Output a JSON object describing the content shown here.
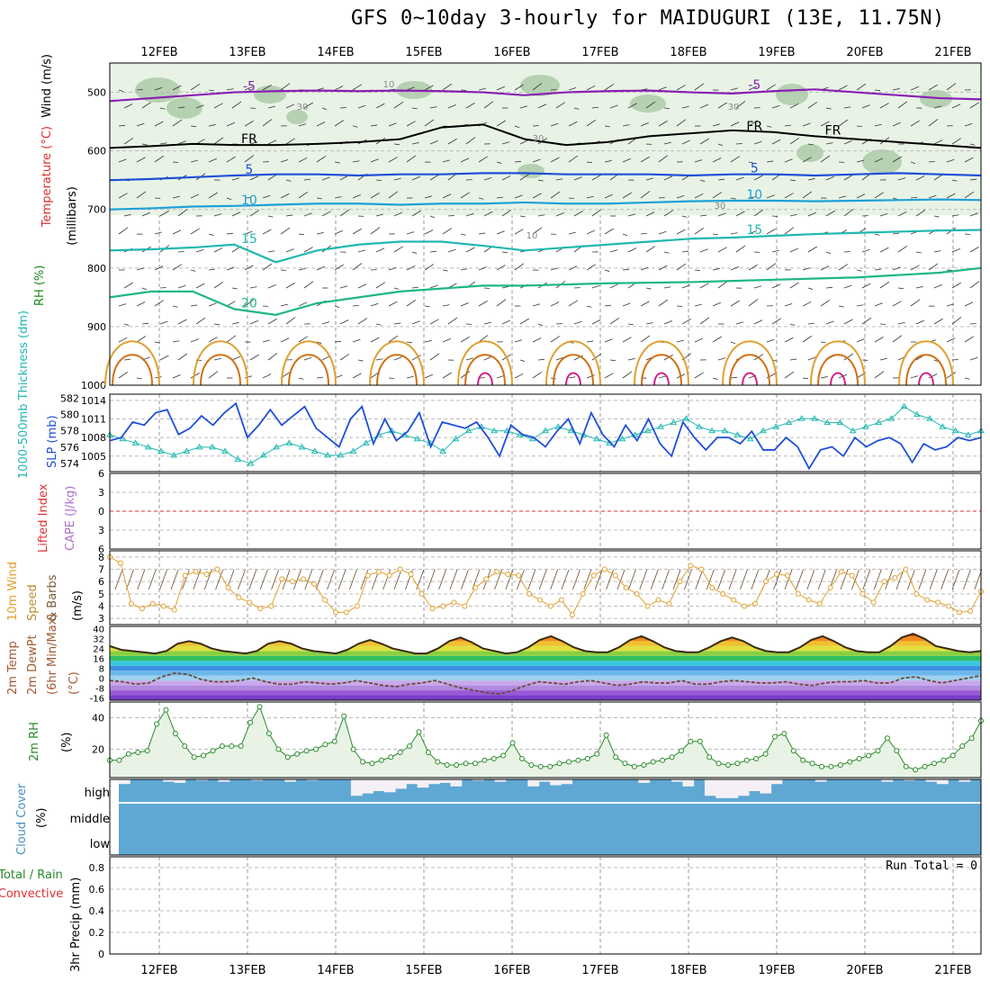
{
  "title": "GFS 0~10day 3-hourly for MAIDUGURI (13E, 11.75N)",
  "dates": [
    "12FEB",
    "13FEB",
    "14FEB",
    "15FEB",
    "16FEB",
    "17FEB",
    "18FEB",
    "19FEB",
    "20FEB",
    "21FEB"
  ],
  "colors": {
    "purple": "#8a1fb4",
    "blue": "#1f4fd8",
    "lightblue": "#1ea0d8",
    "teal": "#20b8b0",
    "green": "#1fb880",
    "orange": "#e0a030",
    "darkorange": "#d07010",
    "magenta": "#d0208a",
    "rh_fill": "#e8f3e6",
    "rh_dark": "#a8c8a4",
    "cloud": "#5fa8d4",
    "ref_red": "#e03030"
  },
  "chart_data": [
    {
      "type": "heatmap",
      "name": "upper_air_cross_section",
      "ylabel_parts": [
        "Wind (m/s)",
        "Temperature (°C)",
        "RH (%)"
      ],
      "yunit_label": "(millibars)",
      "yticks": [
        500,
        600,
        700,
        800,
        900,
        1000
      ],
      "ylim": [
        450,
        1000
      ],
      "temperature_contours": [
        {
          "label": "-5",
          "color": "purple",
          "pressure": [
            515,
            510,
            505,
            500,
            498,
            497,
            498,
            497,
            498,
            500,
            505,
            500,
            498,
            497,
            500,
            502,
            498,
            495,
            500,
            505,
            510,
            512
          ],
          "annotations": [
            "-5",
            "-5"
          ]
        },
        {
          "label": "FR",
          "color": "black",
          "pressure": [
            595,
            592,
            588,
            590,
            590,
            588,
            585,
            580,
            560,
            555,
            580,
            590,
            585,
            575,
            570,
            565,
            568,
            575,
            580,
            585,
            590,
            595
          ],
          "annotations": [
            "FR",
            "FR",
            "FR"
          ]
        },
        {
          "label": "5",
          "color": "blue",
          "pressure": [
            650,
            648,
            645,
            642,
            640,
            640,
            642,
            640,
            640,
            638,
            638,
            640,
            640,
            640,
            642,
            640,
            640,
            642,
            640,
            638,
            640,
            642
          ],
          "annotations": [
            "5",
            "5"
          ]
        },
        {
          "label": "10",
          "color": "lightblue",
          "pressure": [
            700,
            698,
            695,
            694,
            692,
            690,
            690,
            692,
            690,
            690,
            688,
            690,
            690,
            688,
            686,
            685,
            685,
            686,
            685,
            684,
            683,
            684
          ],
          "annotations": [
            "10",
            "10"
          ]
        },
        {
          "label": "15",
          "color": "teal",
          "pressure": [
            770,
            768,
            765,
            760,
            790,
            770,
            760,
            755,
            755,
            762,
            770,
            765,
            760,
            755,
            750,
            748,
            745,
            742,
            740,
            738,
            736,
            735
          ],
          "annotations": [
            "15",
            "15"
          ]
        },
        {
          "label": "20",
          "color": "green",
          "pressure": [
            850,
            840,
            840,
            870,
            880,
            860,
            850,
            840,
            835,
            830,
            830,
            828,
            826,
            825,
            824,
            822,
            820,
            818,
            816,
            812,
            808,
            800
          ],
          "annotations": [
            "20"
          ]
        }
      ],
      "rh_contour_labels": [
        "10",
        "30",
        "30",
        "30",
        "10",
        "30"
      ]
    },
    {
      "type": "line",
      "name": "thickness_slp",
      "series": [
        {
          "name": "SLP (mb)",
          "axis": "right",
          "color": "blue",
          "values": [
            1007.5,
            1008,
            1010.5,
            1010,
            1012,
            1012.5,
            1008.5,
            1009.5,
            1011.5,
            1010,
            1012,
            1013.5,
            1008,
            1010,
            1012.5,
            1010,
            1011.5,
            1013,
            1009.5,
            1008,
            1006.5,
            1011,
            1013,
            1007,
            1011,
            1007.5,
            1009,
            1012,
            1006.5,
            1010.5,
            1010,
            1009.5,
            1010.5,
            1008,
            1005,
            1010,
            1008.5,
            1008,
            1006.5,
            1009,
            1011,
            1007,
            1012,
            1008.5,
            1006.5,
            1010,
            1007.5,
            1011,
            1007,
            1005,
            1010.5,
            1008,
            1006,
            1008,
            1008,
            1007,
            1009,
            1006,
            1006,
            1008,
            1006.5,
            1003,
            1006,
            1006.5,
            1005,
            1008,
            1006.5,
            1007.5,
            1008,
            1007,
            1004,
            1007,
            1006,
            1006.5,
            1008,
            1007.5,
            1008
          ]
        },
        {
          "name": "1000-500mb thickness (dm)",
          "axis": "left",
          "color": "teal",
          "values": [
            577.5,
            577,
            576.5,
            576,
            575.5,
            575,
            575.5,
            576,
            576,
            575.5,
            574.5,
            574,
            575,
            576,
            576.5,
            576,
            575.5,
            575,
            575,
            575.5,
            576.5,
            577.5,
            578,
            577.5,
            577,
            576.5,
            575.5,
            577,
            578,
            578.5,
            578,
            578,
            577.5,
            577,
            578,
            578.5,
            578,
            577.5,
            577,
            576.5,
            577,
            577.5,
            578,
            578.5,
            579,
            579.5,
            578.5,
            578,
            578,
            577.5,
            577,
            578,
            578.5,
            579,
            579.5,
            579.5,
            579,
            579,
            578,
            578.5,
            579,
            579.5,
            581,
            580,
            579.5,
            578.5,
            578,
            577.5,
            578
          ]
        }
      ],
      "yleft_ticks": [
        574,
        576,
        578,
        580,
        582
      ],
      "yright_ticks": [
        1005,
        1008,
        1011,
        1014
      ],
      "ylabel_left": "1000-500mb Thickness (dm)",
      "ylabel_right": "SLP (mb)"
    },
    {
      "type": "line",
      "name": "lifted_index_cape",
      "yticks": [
        -6,
        -3,
        0,
        3,
        6
      ],
      "ylabel_left": "Lifted Index",
      "ylabel_right": "CAPE (J/kg)",
      "series": []
    },
    {
      "type": "line",
      "name": "wind10m",
      "ylabel": [
        "10m Wind",
        "Speed",
        "& Barbs",
        "(m/s)"
      ],
      "yticks": [
        3,
        4,
        5,
        6,
        7,
        8
      ],
      "series": [
        {
          "name": "10m wind speed",
          "color": "orange",
          "values": [
            8,
            7.5,
            4.2,
            3.8,
            4.2,
            4,
            3.7,
            6.5,
            6.8,
            6.6,
            7,
            5.5,
            4.7,
            4.3,
            3.8,
            4,
            6.2,
            6,
            6.2,
            5.8,
            4.5,
            3.5,
            3.5,
            4,
            6.5,
            6.8,
            6.5,
            7,
            6.6,
            5,
            3.8,
            4,
            4.3,
            4,
            5.5,
            6.2,
            6.8,
            6.6,
            6.5,
            5,
            4.5,
            4,
            4.5,
            3.3,
            5,
            6.5,
            7,
            6.5,
            5.5,
            5,
            4,
            4.5,
            4.2,
            6,
            7.3,
            7,
            5.5,
            5,
            4.5,
            4,
            4.2,
            6,
            6.6,
            6.5,
            5,
            4.5,
            4.2,
            5.5,
            6.8,
            6.5,
            5,
            4.3,
            6,
            6.3,
            7,
            5,
            4.5,
            4.3,
            4,
            3.5,
            3.6,
            5.2
          ]
        }
      ]
    },
    {
      "type": "area",
      "name": "temp_dewpoint",
      "ylabel": [
        "2m Temp",
        "2m DewPt",
        "(6hr Min/Max)",
        "(°C)"
      ],
      "yticks": [
        -16,
        -8,
        0,
        8,
        16,
        24,
        32,
        40
      ],
      "series": [
        {
          "name": "2m Temp",
          "values": [
            26,
            23,
            22,
            21,
            20,
            22,
            28,
            30,
            28,
            24,
            22,
            21,
            20,
            22,
            28,
            30,
            28,
            24,
            22,
            21,
            20,
            23,
            28,
            31,
            28,
            24,
            22,
            20,
            20,
            24,
            30,
            33,
            29,
            24,
            22,
            20,
            21,
            25,
            31,
            34,
            30,
            25,
            22,
            21,
            21,
            25,
            31,
            34,
            30,
            25,
            22,
            21,
            21,
            25,
            30,
            33,
            30,
            25,
            22,
            21,
            21,
            25,
            31,
            34,
            30,
            25,
            22,
            21,
            21,
            26,
            33,
            36,
            32,
            26,
            24,
            22,
            21,
            22
          ]
        },
        {
          "name": "2m DewPt",
          "values": [
            -2,
            -3,
            -5,
            -4,
            1,
            4,
            3,
            -1,
            -3,
            -3,
            -2,
            0,
            -3,
            -5,
            -5,
            -3,
            -4,
            -5,
            -4,
            -2,
            -4,
            -6,
            -7,
            -5,
            -4,
            -2,
            -5,
            -8,
            -10,
            -12,
            -13,
            -10,
            -6,
            -3,
            -4,
            -5,
            -3,
            -2,
            -4,
            -6,
            -5,
            -3,
            -4,
            -4,
            -2,
            -5,
            -5,
            -3,
            -2,
            -3,
            -4,
            -4,
            -3,
            -5,
            -6,
            -4,
            -3,
            -3,
            -2,
            -4,
            -4,
            0,
            1,
            -2,
            -4,
            -2,
            0,
            2
          ]
        }
      ]
    },
    {
      "type": "area",
      "name": "rh2m",
      "ylabel": [
        "2m RH",
        "(%)"
      ],
      "yticks": [
        20,
        40
      ],
      "series": [
        {
          "name": "2m RH",
          "color": "green",
          "values": [
            13,
            13,
            17,
            18,
            19,
            36,
            45,
            30,
            22,
            15,
            16,
            19,
            22,
            22,
            22,
            37,
            47,
            30,
            20,
            15,
            17,
            19,
            20,
            23,
            25,
            41,
            20,
            12,
            11,
            13,
            15,
            18,
            22,
            31,
            18,
            12,
            10,
            10,
            11,
            11,
            13,
            14,
            16,
            24,
            14,
            10,
            9,
            9,
            11,
            12,
            13,
            14,
            17,
            29,
            15,
            11,
            9,
            10,
            12,
            13,
            15,
            19,
            25,
            25,
            15,
            11,
            10,
            11,
            13,
            14,
            17,
            28,
            30,
            19,
            13,
            11,
            9,
            9,
            10,
            12,
            14,
            16,
            19,
            27,
            19,
            9,
            7,
            9,
            11,
            13,
            16,
            22,
            27,
            38
          ]
        }
      ]
    },
    {
      "type": "bar",
      "name": "cloud_cover",
      "ylabel": [
        "Cloud Cover",
        "(%)"
      ],
      "levels": [
        "high",
        "middle",
        "low"
      ],
      "high_values": [
        80,
        100,
        100,
        100,
        90,
        85,
        100,
        95,
        100,
        90,
        100,
        100,
        95,
        100,
        100,
        90,
        100,
        95,
        100,
        100,
        100,
        30,
        40,
        50,
        45,
        60,
        80,
        65,
        80,
        85,
        70,
        100,
        95,
        100,
        90,
        100,
        100,
        70,
        90,
        75,
        80,
        100,
        100,
        100,
        100,
        100,
        100,
        85,
        100,
        100,
        90,
        70,
        100,
        30,
        20,
        20,
        30,
        50,
        40,
        80,
        100,
        100,
        100,
        90,
        100,
        100,
        100,
        100,
        100,
        90,
        100,
        95,
        100,
        90,
        80,
        100,
        90,
        100
      ]
    },
    {
      "type": "bar",
      "name": "precip_3hr",
      "ylabel": [
        "3hr Precip (mm)"
      ],
      "legend_left": [
        "Total / Rain",
        "Convective"
      ],
      "yticks": [
        0,
        0.2,
        0.4,
        0.6,
        0.8
      ],
      "values": [],
      "run_total": "Run Total = 0"
    }
  ]
}
